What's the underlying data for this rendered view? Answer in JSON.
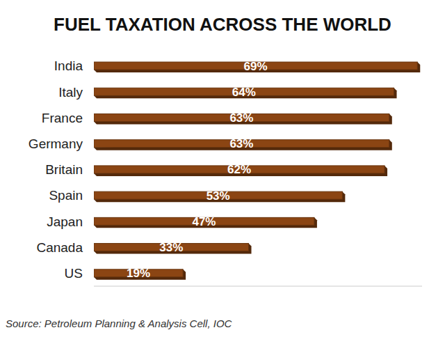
{
  "chart_data": {
    "type": "bar",
    "title": "FUEL TAXATION ACROSS THE WORLD",
    "orientation": "horizontal",
    "categories": [
      "India",
      "Italy",
      "France",
      "Germany",
      "Britain",
      "Spain",
      "Japan",
      "Canada",
      "US"
    ],
    "values": [
      69,
      64,
      63,
      63,
      62,
      53,
      47,
      33,
      19
    ],
    "value_labels": [
      "69%",
      "64%",
      "63%",
      "63%",
      "62%",
      "53%",
      "47%",
      "33%",
      "19%"
    ],
    "color": "#8b4513",
    "xlim": [
      0,
      70
    ],
    "grid": false,
    "data_labels": true,
    "tick_labels": "y",
    "annotations": [
      "Source: Petroleum Planning & Analysis Cell, IOC"
    ]
  }
}
